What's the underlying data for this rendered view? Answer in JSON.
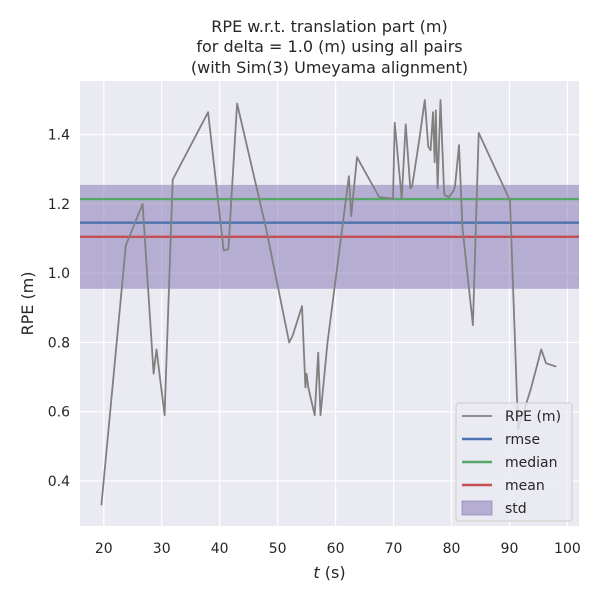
{
  "chart_data": {
    "type": "line",
    "title": [
      "RPE w.r.t. translation part (m)",
      "for delta = 1.0 (m) using all pairs",
      "(with Sim(3) Umeyama alignment)"
    ],
    "xlabel": "t (s)",
    "xlabel_italic_part": "t",
    "xlabel_rest": " (s)",
    "ylabel": "RPE (m)",
    "xlim": [
      15.9,
      102
    ],
    "ylim": [
      0.27,
      1.555
    ],
    "xticks": [
      20,
      30,
      40,
      50,
      60,
      70,
      80,
      90,
      100
    ],
    "yticks": [
      0.4,
      0.6,
      0.8,
      1.0,
      1.2,
      1.4
    ],
    "ytick_labels": [
      "0.4",
      "0.6",
      "0.8",
      "1.0",
      "1.2",
      "1.4"
    ],
    "grid": true,
    "legend_position": "lower-right",
    "colors": {
      "background": "#eaeaf2",
      "grid": "#ffffff",
      "series": "#808080",
      "rmse": "#4c72b0",
      "median": "#55a868",
      "mean": "#c44e52",
      "std_fill": "#8172b2"
    },
    "statistics": {
      "rmse": 1.146,
      "median": 1.214,
      "mean": 1.105,
      "std_band": [
        0.955,
        1.255
      ]
    },
    "legend": [
      {
        "label": "RPE (m)",
        "kind": "line",
        "color": "#808080"
      },
      {
        "label": "rmse",
        "kind": "line",
        "color": "#4c72b0"
      },
      {
        "label": "median",
        "kind": "line",
        "color": "#55a868"
      },
      {
        "label": "mean",
        "kind": "line",
        "color": "#c44e52"
      },
      {
        "label": "std",
        "kind": "patch",
        "color": "#8172b2"
      }
    ],
    "series": [
      {
        "name": "RPE (m)",
        "x": [
          19.6,
          23.8,
          26.7,
          28.6,
          29.1,
          30.5,
          31.9,
          38.0,
          40.7,
          41.5,
          43.0,
          48.0,
          52.0,
          52.6,
          54.2,
          54.8,
          55.0,
          55.3,
          56.4,
          57.0,
          57.4,
          58.6,
          62.3,
          62.7,
          63.7,
          67.5,
          69.9,
          70.2,
          71.4,
          72.1,
          72.9,
          73.2,
          74.4,
          75.4,
          76.0,
          76.4,
          76.8,
          77.1,
          77.3,
          77.6,
          78.1,
          78.7,
          78.8,
          79.6,
          80.4,
          80.6,
          81.3,
          81.9,
          83.7,
          84.7,
          90.1,
          91.5,
          93.6,
          95.5,
          96.3,
          98.1
        ],
        "y": [
          0.33,
          1.08,
          1.2,
          0.71,
          0.78,
          0.59,
          1.27,
          1.465,
          1.065,
          1.07,
          1.49,
          1.13,
          0.8,
          0.82,
          0.905,
          0.67,
          0.71,
          0.67,
          0.59,
          0.77,
          0.59,
          0.8,
          1.28,
          1.165,
          1.335,
          1.22,
          1.215,
          1.435,
          1.215,
          1.43,
          1.245,
          1.25,
          1.38,
          1.5,
          1.365,
          1.355,
          1.465,
          1.32,
          1.47,
          1.245,
          1.5,
          1.24,
          1.225,
          1.22,
          1.24,
          1.25,
          1.37,
          1.13,
          0.85,
          1.405,
          1.21,
          0.55,
          0.66,
          0.78,
          0.74,
          0.73
        ]
      }
    ]
  }
}
